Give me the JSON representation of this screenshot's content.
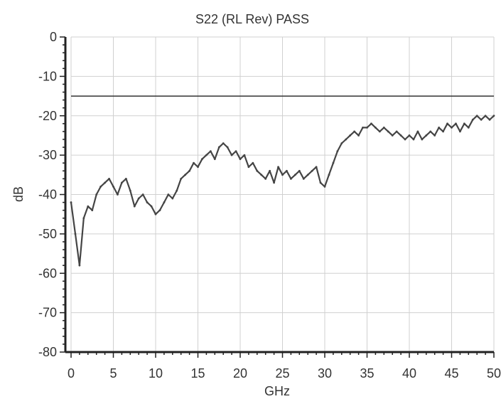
{
  "chart_data": {
    "type": "line",
    "title": "S22 (RL Rev) PASS",
    "xlabel": "GHz",
    "ylabel": "dB",
    "xlim": [
      0,
      50
    ],
    "ylim": [
      -80,
      0
    ],
    "x_ticks": [
      "0",
      "5",
      "10",
      "15",
      "20",
      "25",
      "30",
      "35",
      "40",
      "45",
      "50"
    ],
    "y_ticks": [
      "0",
      "-10",
      "-20",
      "-30",
      "-40",
      "-50",
      "-60",
      "-70",
      "-80"
    ],
    "grid": true,
    "limit_line": {
      "y": -15
    },
    "series": [
      {
        "color": "#444444",
        "x": [
          0,
          0.5,
          1,
          1.5,
          2,
          2.5,
          3,
          3.5,
          4,
          4.5,
          5,
          5.5,
          6,
          6.5,
          7,
          7.5,
          8,
          8.5,
          9,
          9.5,
          10,
          10.5,
          11,
          11.5,
          12,
          12.5,
          13,
          13.5,
          14,
          14.5,
          15,
          15.5,
          16,
          16.5,
          17,
          17.5,
          18,
          18.5,
          19,
          19.5,
          20,
          20.5,
          21,
          21.5,
          22,
          22.5,
          23,
          23.5,
          24,
          24.5,
          25,
          25.5,
          26,
          26.5,
          27,
          27.5,
          28,
          28.5,
          29,
          29.5,
          30,
          30.5,
          31,
          31.5,
          32,
          32.5,
          33,
          33.5,
          34,
          34.5,
          35,
          35.5,
          36,
          36.5,
          37,
          37.5,
          38,
          38.5,
          39,
          39.5,
          40,
          40.5,
          41,
          41.5,
          42,
          42.5,
          43,
          43.5,
          44,
          44.5,
          45,
          45.5,
          46,
          46.5,
          47,
          47.5,
          48,
          48.5,
          49,
          49.5,
          50
        ],
        "y": [
          -42,
          -50,
          -58,
          -46,
          -43,
          -44,
          -40,
          -38,
          -37,
          -36,
          -38,
          -40,
          -37,
          -36,
          -39,
          -43,
          -41,
          -40,
          -42,
          -43,
          -45,
          -44,
          -42,
          -40,
          -41,
          -39,
          -36,
          -35,
          -34,
          -32,
          -33,
          -31,
          -30,
          -29,
          -31,
          -28,
          -27,
          -28,
          -30,
          -29,
          -31,
          -30,
          -33,
          -32,
          -34,
          -35,
          -36,
          -34,
          -37,
          -33,
          -35,
          -34,
          -36,
          -35,
          -34,
          -36,
          -35,
          -34,
          -33,
          -37,
          -38,
          -35,
          -32,
          -29,
          -27,
          -26,
          -25,
          -24,
          -25,
          -23,
          -23,
          -22,
          -23,
          -24,
          -23,
          -24,
          -25,
          -24,
          -25,
          -26,
          -25,
          -26,
          -24,
          -26,
          -25,
          -24,
          -25,
          -23,
          -24,
          -22,
          -23,
          -22,
          -24,
          -22,
          -23,
          -21,
          -20,
          -21,
          -20,
          -21,
          -20
        ]
      }
    ]
  }
}
